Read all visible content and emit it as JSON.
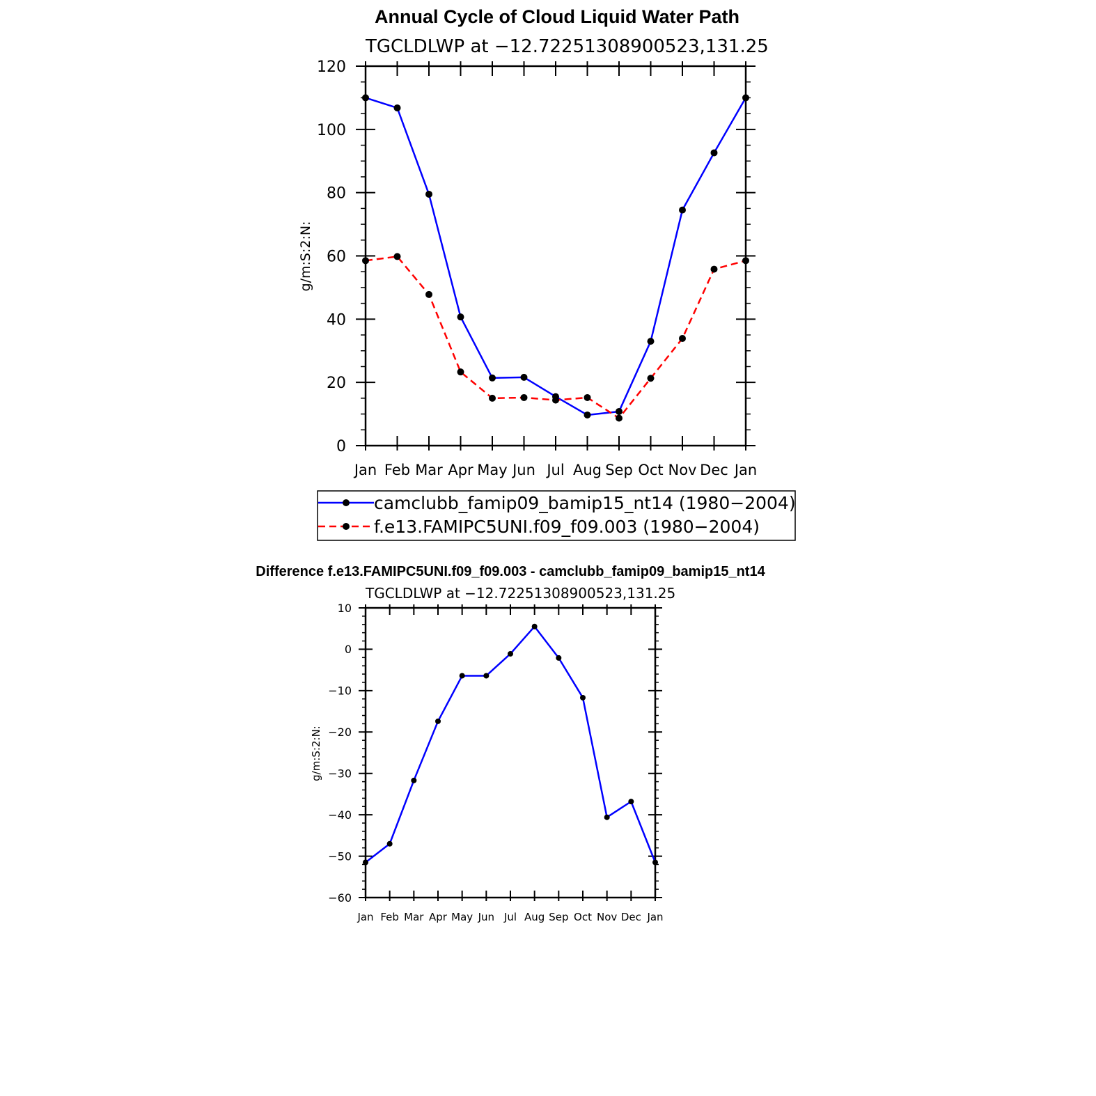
{
  "colors": {
    "series1": "#0000ff",
    "series2": "#ff0000",
    "diff": "#0000ff",
    "marker": "#000000"
  },
  "chart_data": [
    {
      "type": "line",
      "title": "Annual Cycle of Cloud Liquid Water Path",
      "subtitle": "TGCLDLWP at −12.72251308900523,131.25",
      "xlabel": "",
      "ylabel": "g/m:S:2:N:",
      "categories": [
        "Jan",
        "Feb",
        "Mar",
        "Apr",
        "May",
        "Jun",
        "Jul",
        "Aug",
        "Sep",
        "Oct",
        "Nov",
        "Dec",
        "Jan"
      ],
      "ylim": [
        0,
        120
      ],
      "yticks": [
        0,
        20,
        40,
        60,
        80,
        100,
        120
      ],
      "ytick_labels": [
        "0",
        "20",
        "40",
        "60",
        "80",
        "100",
        "120"
      ],
      "series": [
        {
          "name": "camclubb_famip09_bamip15_nt14 (1980−2004)",
          "style": "solid",
          "values": [
            110,
            106.8,
            79.5,
            40.7,
            21.4,
            21.6,
            15.5,
            9.7,
            10.8,
            33.0,
            74.5,
            92.6,
            110
          ]
        },
        {
          "name": "f.e13.FAMIPC5UNI.f09_f09.003 (1980−2004)",
          "style": "dashed",
          "values": [
            58.5,
            59.8,
            47.8,
            23.3,
            15.0,
            15.2,
            14.4,
            15.2,
            8.7,
            21.3,
            33.9,
            55.8,
            58.5
          ]
        }
      ],
      "legend": "bottom"
    },
    {
      "type": "line",
      "title": "Difference f.e13.FAMIPC5UNI.f09_f09.003 - camclubb_famip09_bamip15_nt14",
      "subtitle": "TGCLDLWP at −12.72251308900523,131.25",
      "xlabel": "",
      "ylabel": "g/m:S:2:N:",
      "categories": [
        "Jan",
        "Feb",
        "Mar",
        "Apr",
        "May",
        "Jun",
        "Jul",
        "Aug",
        "Sep",
        "Oct",
        "Nov",
        "Dec",
        "Jan"
      ],
      "ylim": [
        -60,
        10
      ],
      "yticks": [
        -60,
        -50,
        -40,
        -30,
        -20,
        -10,
        0,
        10
      ],
      "ytick_labels": [
        "−60",
        "−50",
        "−40",
        "−30",
        "−20",
        "−10",
        "0",
        "10"
      ],
      "series": [
        {
          "name": "difference",
          "style": "solid",
          "values": [
            -51.5,
            -47.0,
            -31.7,
            -17.4,
            -6.4,
            -6.4,
            -1.1,
            5.5,
            -2.1,
            -11.7,
            -40.6,
            -36.8,
            -51.5
          ]
        }
      ]
    }
  ]
}
